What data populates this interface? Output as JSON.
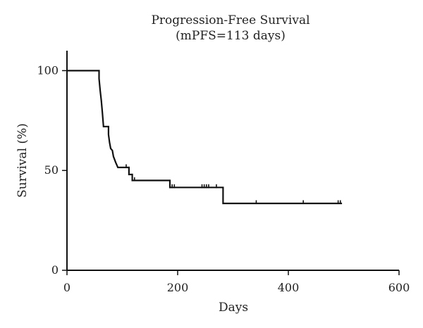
{
  "chart_data": {
    "type": "line",
    "subtype": "kaplan-meier-step",
    "title": "Progression-Free Survival",
    "subtitle": "(mPFS=113 days)",
    "xlabel": "Days",
    "ylabel": "Survival (%)",
    "xlim": [
      0,
      600
    ],
    "ylim": [
      0,
      110
    ],
    "xticks": [
      0,
      200,
      400,
      600
    ],
    "yticks": [
      0,
      50,
      100
    ],
    "grid": false,
    "legend": "none",
    "series": [
      {
        "step_points": [
          [
            0,
            100
          ],
          [
            58,
            100
          ],
          [
            58,
            96
          ],
          [
            60,
            90
          ],
          [
            62,
            85
          ],
          [
            64,
            79
          ],
          [
            66,
            72
          ],
          [
            75,
            72
          ],
          [
            75,
            68
          ],
          [
            77,
            64
          ],
          [
            79,
            61
          ],
          [
            82,
            60
          ],
          [
            84,
            57
          ],
          [
            88,
            54
          ],
          [
            92,
            51.5
          ],
          [
            112,
            51.5
          ],
          [
            112,
            48
          ],
          [
            118,
            48
          ],
          [
            118,
            45
          ],
          [
            186,
            45
          ],
          [
            186,
            41.5
          ],
          [
            282,
            41.5
          ],
          [
            282,
            33.5
          ],
          [
            497,
            33.5
          ]
        ],
        "censored": [
          [
            107,
            51.5
          ],
          [
            122,
            45
          ],
          [
            186,
            41.5
          ],
          [
            190,
            41.5
          ],
          [
            194,
            41.5
          ],
          [
            244,
            41.5
          ],
          [
            248,
            41.5
          ],
          [
            252,
            41.5
          ],
          [
            256,
            41.5
          ],
          [
            270,
            41.5
          ],
          [
            342,
            33.5
          ],
          [
            427,
            33.5
          ],
          [
            490,
            33.5
          ],
          [
            494,
            33.5
          ]
        ]
      }
    ],
    "colors": {
      "line": "#111111",
      "axis": "#111111",
      "text": "#222222"
    }
  }
}
